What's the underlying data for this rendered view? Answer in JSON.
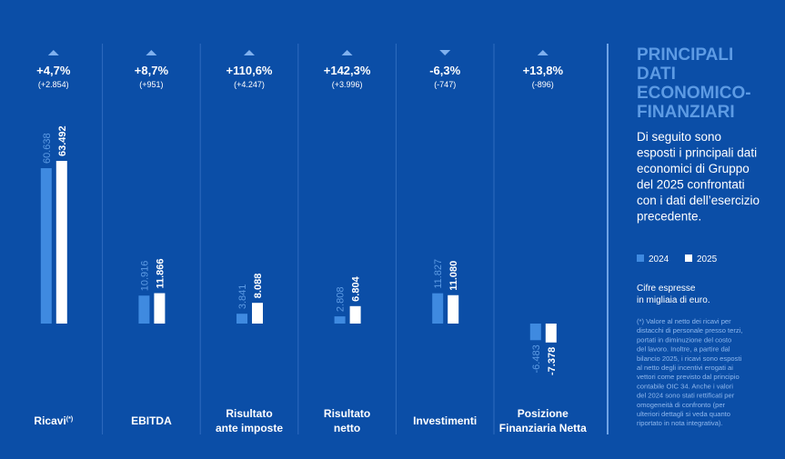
{
  "chart_data": [
    {
      "type": "bar",
      "title": [
        "Ricavi"
      ],
      "title_note": "(*)",
      "change": "+4,7%",
      "change_abs": "(+2.854)",
      "trend": "up",
      "series": [
        {
          "name": "2024",
          "color": "#3f8ae0",
          "values": [
            60638
          ],
          "value_labels": [
            "60.638"
          ]
        },
        {
          "name": "2025",
          "color": "#ffffff",
          "values": [
            63492
          ],
          "value_labels": [
            "63.492"
          ]
        }
      ]
    },
    {
      "type": "bar",
      "title": [
        "EBITDA"
      ],
      "change": "+8,7%",
      "change_abs": "(+951)",
      "trend": "up",
      "series": [
        {
          "name": "2024",
          "color": "#3f8ae0",
          "values": [
            10916
          ],
          "value_labels": [
            "10.916"
          ]
        },
        {
          "name": "2025",
          "color": "#ffffff",
          "values": [
            11866
          ],
          "value_labels": [
            "11.866"
          ]
        }
      ]
    },
    {
      "type": "bar",
      "title": [
        "Risultato",
        "ante imposte"
      ],
      "change": "+110,6%",
      "change_abs": "(+4.247)",
      "trend": "up",
      "series": [
        {
          "name": "2024",
          "color": "#3f8ae0",
          "values": [
            3841
          ],
          "value_labels": [
            "3.841"
          ]
        },
        {
          "name": "2025",
          "color": "#ffffff",
          "values": [
            8088
          ],
          "value_labels": [
            "8.088"
          ]
        }
      ]
    },
    {
      "type": "bar",
      "title": [
        "Risultato",
        "netto"
      ],
      "change": "+142,3%",
      "change_abs": "(+3.996)",
      "trend": "up",
      "series": [
        {
          "name": "2024",
          "color": "#3f8ae0",
          "values": [
            2808
          ],
          "value_labels": [
            "2.808"
          ]
        },
        {
          "name": "2025",
          "color": "#ffffff",
          "values": [
            6804
          ],
          "value_labels": [
            "6.804"
          ]
        }
      ]
    },
    {
      "type": "bar",
      "title": [
        "Investimenti"
      ],
      "change": "-6,3%",
      "change_abs": "(-747)",
      "trend": "down",
      "series": [
        {
          "name": "2024",
          "color": "#3f8ae0",
          "values": [
            11827
          ],
          "value_labels": [
            "11.827"
          ]
        },
        {
          "name": "2025",
          "color": "#ffffff",
          "values": [
            11080
          ],
          "value_labels": [
            "11.080"
          ]
        }
      ]
    },
    {
      "type": "bar",
      "title": [
        "Posizione",
        "Finanziaria Netta"
      ],
      "change": "+13,8%",
      "change_abs": "(-896)",
      "trend": "up",
      "series": [
        {
          "name": "2024",
          "color": "#3f8ae0",
          "values": [
            -6483
          ],
          "value_labels": [
            "-6.483"
          ]
        },
        {
          "name": "2025",
          "color": "#ffffff",
          "values": [
            -7378
          ],
          "value_labels": [
            "-7.378"
          ]
        }
      ]
    }
  ],
  "panel": {
    "title": [
      "PRINCIPALI",
      "DATI",
      "ECONOMICO-",
      "FINANZIARI"
    ],
    "intro": [
      "Di seguito sono",
      "esposti i principali dati",
      "economici di Gruppo",
      "del 2025 confrontati",
      "con i dati dell’esercizio",
      "precedente."
    ],
    "units": [
      "Cifre espresse",
      "in migliaia di euro."
    ],
    "note": [
      "(*) Valore al netto dei ricavi per",
      "distacchi di personale presso terzi,",
      "portati in diminuzione del costo",
      "del lavoro. Inoltre, a partire dal",
      "bilancio 2025, i ricavi sono esposti",
      "al netto degli incentivi erogati ai",
      "vettori come previsto dal principio",
      "contabile OIC 34. Anche i valori",
      "del 2024 sono stati rettificati per",
      "omogeneità di confronto (per",
      "ulteriori dettagli si veda quanto",
      "riportato in nota integrativa)."
    ]
  }
}
